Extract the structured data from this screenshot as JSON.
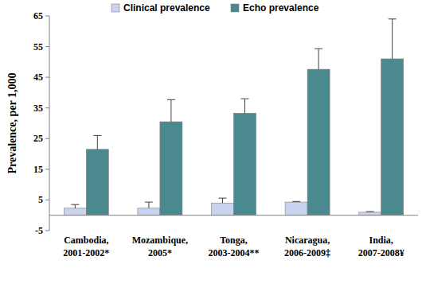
{
  "chart_data": {
    "type": "bar",
    "y_label": "Prevalence, per 1,000",
    "categories": [
      "Cambodia, 2001-2002*",
      "Mozambique, 2005*",
      "Tonga, 2003-2004**",
      "Nicaragua, 2006-2009‡",
      "India, 2007-2008¥"
    ],
    "series": [
      {
        "name": "Clinical prevalence",
        "color": "#c9d3f0",
        "values": [
          2.3,
          2.3,
          4.0,
          4.3,
          1.0
        ],
        "errors": [
          1.2,
          2.0,
          1.6,
          0.2,
          0.2
        ]
      },
      {
        "name": "Echo prevalence",
        "color": "#4a8a8e",
        "values": [
          21.5,
          30.5,
          33.3,
          47.6,
          51.0
        ],
        "errors": [
          4.5,
          7.2,
          4.7,
          6.7,
          13.0
        ]
      }
    ],
    "ylim": [
      -5,
      65
    ],
    "yticks": [
      -5,
      5,
      15,
      25,
      35,
      45,
      55,
      65
    ],
    "grid": false,
    "legend": "top"
  }
}
